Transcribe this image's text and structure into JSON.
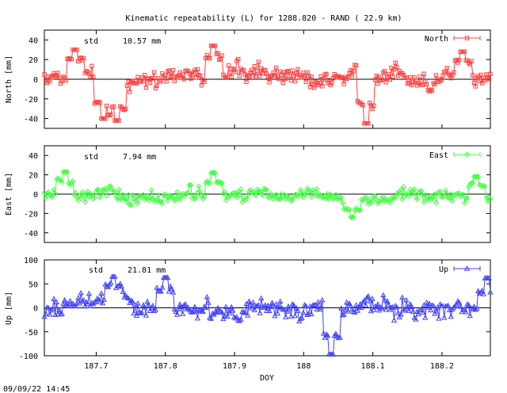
{
  "title": "Kinematic repeatability (L) for 1288.820 - RAND  ( 22.9 km)",
  "timestamp": "09/09/22 14:45",
  "x_axis": {
    "label": "DOY",
    "range": [
      187.625,
      188.27
    ],
    "ticks": [
      187.7,
      187.8,
      187.9,
      188.0,
      188.1,
      188.2
    ],
    "tick_labels": [
      "187.7",
      "187.8",
      "187.9",
      "188",
      "188.1",
      "188.2"
    ]
  },
  "chart_data": [
    {
      "type": "line",
      "panel": "north",
      "ylabel": "North [mm]",
      "ylim": [
        -50,
        50
      ],
      "yticks": [
        -40,
        -20,
        0,
        20,
        40
      ],
      "std_label": "std",
      "std_value": "10.57 mm",
      "series": [
        {
          "name": "North",
          "color": "#ff4040",
          "marker": "square",
          "std": 10.57
        }
      ],
      "notable_values": [
        {
          "x": 187.67,
          "y": 30
        },
        {
          "x": 187.71,
          "y": -40
        },
        {
          "x": 187.73,
          "y": -42
        },
        {
          "x": 187.87,
          "y": 34
        },
        {
          "x": 188.09,
          "y": -45
        },
        {
          "x": 188.23,
          "y": 28
        }
      ]
    },
    {
      "type": "line",
      "panel": "east",
      "ylabel": "East [mm]",
      "ylim": [
        -50,
        50
      ],
      "yticks": [
        -40,
        -20,
        0,
        20,
        40
      ],
      "std_label": "std",
      "std_value": "7.94 mm",
      "series": [
        {
          "name": "East",
          "color": "#40ff40",
          "marker": "diamond",
          "std": 7.94
        }
      ],
      "notable_values": [
        {
          "x": 187.655,
          "y": 23
        },
        {
          "x": 187.87,
          "y": 22
        },
        {
          "x": 188.07,
          "y": -24
        },
        {
          "x": 188.25,
          "y": 18
        }
      ]
    },
    {
      "type": "line",
      "panel": "up",
      "ylabel": "Up [mm]",
      "ylim": [
        -100,
        100
      ],
      "yticks": [
        -100,
        -50,
        0,
        50,
        100
      ],
      "std_label": "std",
      "std_value": "21.81 mm",
      "series": [
        {
          "name": "Up",
          "color": "#4040ff",
          "marker": "triangle",
          "std": 21.81
        }
      ],
      "notable_values": [
        {
          "x": 187.725,
          "y": 65
        },
        {
          "x": 187.8,
          "y": 63
        },
        {
          "x": 188.04,
          "y": -98
        },
        {
          "x": 188.265,
          "y": 62
        }
      ]
    }
  ]
}
